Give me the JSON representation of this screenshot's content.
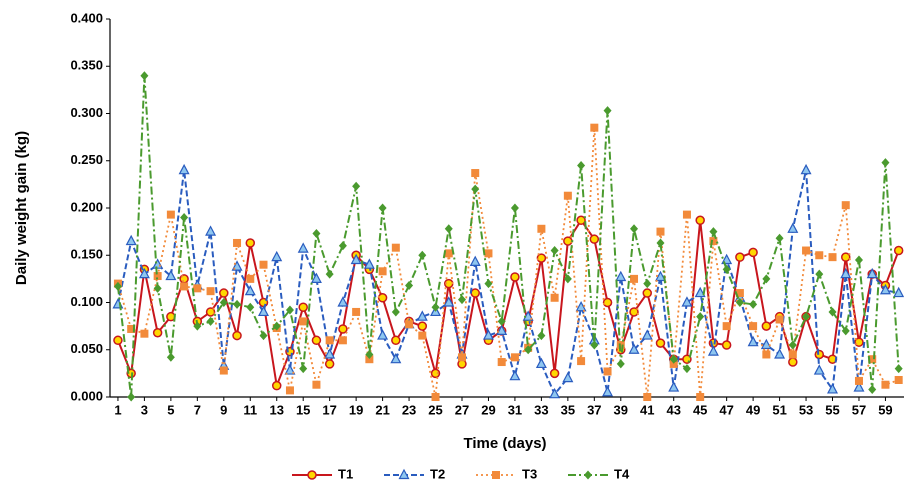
{
  "chart_data": {
    "type": "line",
    "x_label": "Time (days)",
    "y_label": "Daily weight gain (kg)",
    "x": [
      1,
      2,
      3,
      4,
      5,
      6,
      7,
      8,
      9,
      10,
      11,
      12,
      13,
      14,
      15,
      16,
      17,
      18,
      19,
      20,
      21,
      22,
      23,
      24,
      25,
      26,
      27,
      28,
      29,
      30,
      31,
      32,
      33,
      34,
      35,
      36,
      37,
      38,
      39,
      40,
      41,
      42,
      43,
      44,
      45,
      46,
      47,
      48,
      49,
      50,
      51,
      52,
      53,
      54,
      55,
      56,
      57,
      58,
      59,
      60
    ],
    "series": [
      {
        "name": "T1",
        "color": "#c8161d",
        "values": [
          0.06,
          0.025,
          0.135,
          0.068,
          0.085,
          0.125,
          0.08,
          0.09,
          0.11,
          0.065,
          0.163,
          0.1,
          0.012,
          0.048,
          0.095,
          0.06,
          0.035,
          0.072,
          0.15,
          0.135,
          0.105,
          0.06,
          0.08,
          0.075,
          0.025,
          0.12,
          0.035,
          0.11,
          0.06,
          0.07,
          0.127,
          0.08,
          0.147,
          0.025,
          0.165,
          0.187,
          0.167,
          0.1,
          0.05,
          0.09,
          0.11,
          0.057,
          0.04,
          0.04,
          0.187,
          0.057,
          0.055,
          0.148,
          0.153,
          0.075,
          0.085,
          0.037,
          0.085,
          0.045,
          0.04,
          0.148,
          0.058,
          0.13,
          0.118,
          0.155
        ]
      },
      {
        "name": "T2",
        "color": "#2a5cbf",
        "values": [
          0.098,
          0.165,
          0.13,
          0.14,
          0.128,
          0.24,
          0.118,
          0.175,
          0.033,
          0.138,
          0.112,
          0.09,
          0.148,
          0.028,
          0.157,
          0.125,
          0.045,
          0.1,
          0.145,
          0.14,
          0.065,
          0.04,
          0.077,
          0.085,
          0.09,
          0.1,
          0.045,
          0.143,
          0.065,
          0.07,
          0.022,
          0.085,
          0.035,
          0.003,
          0.02,
          0.095,
          0.06,
          0.005,
          0.127,
          0.05,
          0.065,
          0.127,
          0.01,
          0.1,
          0.11,
          0.048,
          0.145,
          0.105,
          0.058,
          0.055,
          0.045,
          0.178,
          0.24,
          0.028,
          0.008,
          0.13,
          0.01,
          0.13,
          0.113,
          0.11
        ]
      },
      {
        "name": "T3",
        "color": "#f28a3a",
        "values": [
          0.12,
          0.072,
          0.067,
          0.128,
          0.193,
          0.117,
          0.115,
          0.112,
          0.028,
          0.163,
          0.125,
          0.14,
          0.073,
          0.007,
          0.08,
          0.013,
          0.06,
          0.06,
          0.09,
          0.04,
          0.133,
          0.158,
          0.077,
          0.065,
          0.0,
          0.152,
          0.042,
          0.237,
          0.152,
          0.037,
          0.042,
          0.052,
          0.178,
          0.105,
          0.213,
          0.038,
          0.285,
          0.027,
          0.055,
          0.125,
          0.0,
          0.175,
          0.035,
          0.193,
          0.0,
          0.165,
          0.075,
          0.11,
          0.075,
          0.045,
          0.082,
          0.045,
          0.155,
          0.15,
          0.148,
          0.203,
          0.017,
          0.04,
          0.013,
          0.018
        ]
      },
      {
        "name": "T4",
        "color": "#4a9a2e",
        "values": [
          0.117,
          0.0,
          0.34,
          0.115,
          0.042,
          0.19,
          0.075,
          0.08,
          0.1,
          0.098,
          0.095,
          0.065,
          0.075,
          0.092,
          0.03,
          0.173,
          0.13,
          0.16,
          0.223,
          0.045,
          0.2,
          0.09,
          0.118,
          0.15,
          0.095,
          0.178,
          0.103,
          0.22,
          0.12,
          0.08,
          0.2,
          0.05,
          0.065,
          0.155,
          0.125,
          0.245,
          0.055,
          0.303,
          0.035,
          0.178,
          0.12,
          0.163,
          0.04,
          0.03,
          0.085,
          0.175,
          0.135,
          0.1,
          0.098,
          0.125,
          0.168,
          0.055,
          0.085,
          0.13,
          0.09,
          0.07,
          0.145,
          0.008,
          0.248,
          0.03
        ]
      }
    ],
    "xlim": [
      0.4,
      60.1
    ],
    "xticks": [
      1,
      3,
      5,
      7,
      9,
      11,
      13,
      15,
      17,
      19,
      21,
      23,
      25,
      27,
      29,
      31,
      33,
      35,
      37,
      39,
      41,
      43,
      45,
      47,
      49,
      51,
      53,
      55,
      57,
      59
    ],
    "ylim": [
      0,
      0.4
    ],
    "yticks": [
      {
        "value": 0,
        "label": "0.000"
      },
      {
        "value": 0.05,
        "label": "0.050"
      },
      {
        "value": 0.1,
        "label": "0.100"
      },
      {
        "value": 0.15,
        "label": "0.150"
      },
      {
        "value": 0.2,
        "label": "0.200"
      },
      {
        "value": 0.25,
        "label": "0.250"
      },
      {
        "value": 0.3,
        "label": "0.300"
      },
      {
        "value": 0.35,
        "label": "0.350"
      },
      {
        "value": 0.4,
        "label": "0.400"
      }
    ],
    "grid": false,
    "legend_position": "bottom"
  }
}
